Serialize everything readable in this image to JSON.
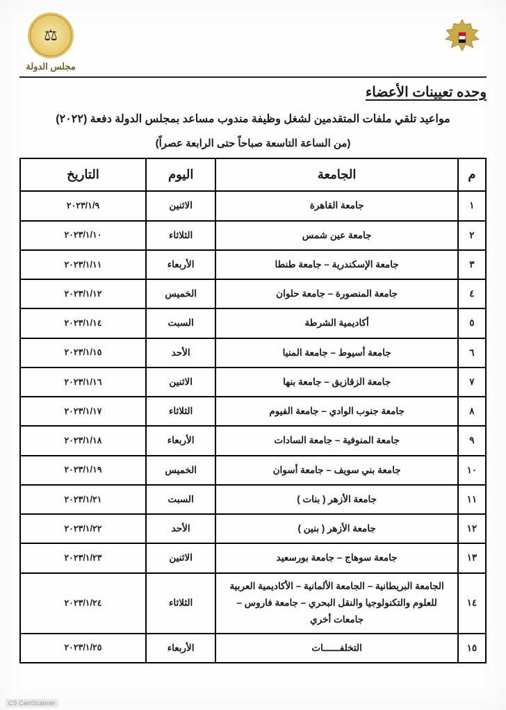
{
  "header": {
    "seal_glyph": "⚖",
    "seal_caption": "مجلس الدولة"
  },
  "unit_title": "وحده تعيينات الأعضاء",
  "main_title": "مواعيد تلقي ملفات المتقدمين لشغل وظيفة مندوب  مساعد بمجلس الدولة دفعة (٢٠٢٢)",
  "sub_title": "(من الساعة التاسعة صباحاً حتى الرابعة عصراً)",
  "table": {
    "columns": {
      "num": "م",
      "univ": "الجامعة",
      "day": "اليوم",
      "date": "التاريخ"
    },
    "rows": [
      {
        "num": "١",
        "univ": "جامعة القاهرة",
        "day": "الاثنين",
        "date": "٢٠٢٣/١/٩"
      },
      {
        "num": "٢",
        "univ": "جامعة عين شمس",
        "day": "الثلاثاء",
        "date": "٢٠٢٣/١/١٠"
      },
      {
        "num": "٣",
        "univ": "جامعة الإسكندرية – جامعة طنطا",
        "day": "الأربعاء",
        "date": "٢٠٢٣/١/١١"
      },
      {
        "num": "٤",
        "univ": "جامعة المنصورة – جامعة حلوان",
        "day": "الخميس",
        "date": "٢٠٢٣/١/١٢"
      },
      {
        "num": "٥",
        "univ": "أكاديمية الشرطة",
        "day": "السبت",
        "date": "٢٠٢٣/١/١٤"
      },
      {
        "num": "٦",
        "univ": "جامعة أسيوط – جامعة المنيا",
        "day": "الأحد",
        "date": "٢٠٢٣/١/١٥"
      },
      {
        "num": "٧",
        "univ": "جامعة الزقازيق – جامعة بنها",
        "day": "الاثنين",
        "date": "٢٠٢٣/١/١٦"
      },
      {
        "num": "٨",
        "univ": "جامعة جنوب الوادي – جامعة الفيوم",
        "day": "الثلاثاء",
        "date": "٢٠٢٣/١/١٧"
      },
      {
        "num": "٩",
        "univ": "جامعة المنوفية – جامعة السادات",
        "day": "الأربعاء",
        "date": "٢٠٢٣/١/١٨"
      },
      {
        "num": "١٠",
        "univ": "جامعة بني سويف – جامعة أسوان",
        "day": "الخميس",
        "date": "٢٠٢٣/١/١٩"
      },
      {
        "num": "١١",
        "univ": "جامعة الأزهر ( بنات )",
        "day": "السبت",
        "date": "٢٠٢٣/١/٢١"
      },
      {
        "num": "١٢",
        "univ": "جامعة الأزهر ( بنين )",
        "day": "الأحد",
        "date": "٢٠٢٣/١/٢٢"
      },
      {
        "num": "١٣",
        "univ": "جامعة سوهاج – جامعة بورسعيد",
        "day": "الاثنين",
        "date": "٢٠٢٣/١/٢٣"
      },
      {
        "num": "١٤",
        "univ": "الجامعة البريطانية – الجامعة الألمانية – الأكاديمية العربية للعلوم والتكنولوجيا والنقل البحري – جامعة فاروس – جامعات أخري",
        "day": "الثلاثاء",
        "date": "٢٠٢٣/١/٢٤"
      },
      {
        "num": "١٥",
        "univ": "التخلفــــــات",
        "day": "الأربعاء",
        "date": "٢٠٢٣/١/٢٥"
      }
    ]
  },
  "footer_scan": "CS CamScanner",
  "styling": {
    "page_bg": "#fdfdfb",
    "border_color": "#000000",
    "text_color": "#1a1a1a",
    "seal_gold_inner": "#f7e7b0",
    "seal_gold_outer": "#c8a44a",
    "header_fontsize_pt": 18,
    "body_fontsize_pt": 13.5,
    "title_fontsize_pt": 16
  }
}
